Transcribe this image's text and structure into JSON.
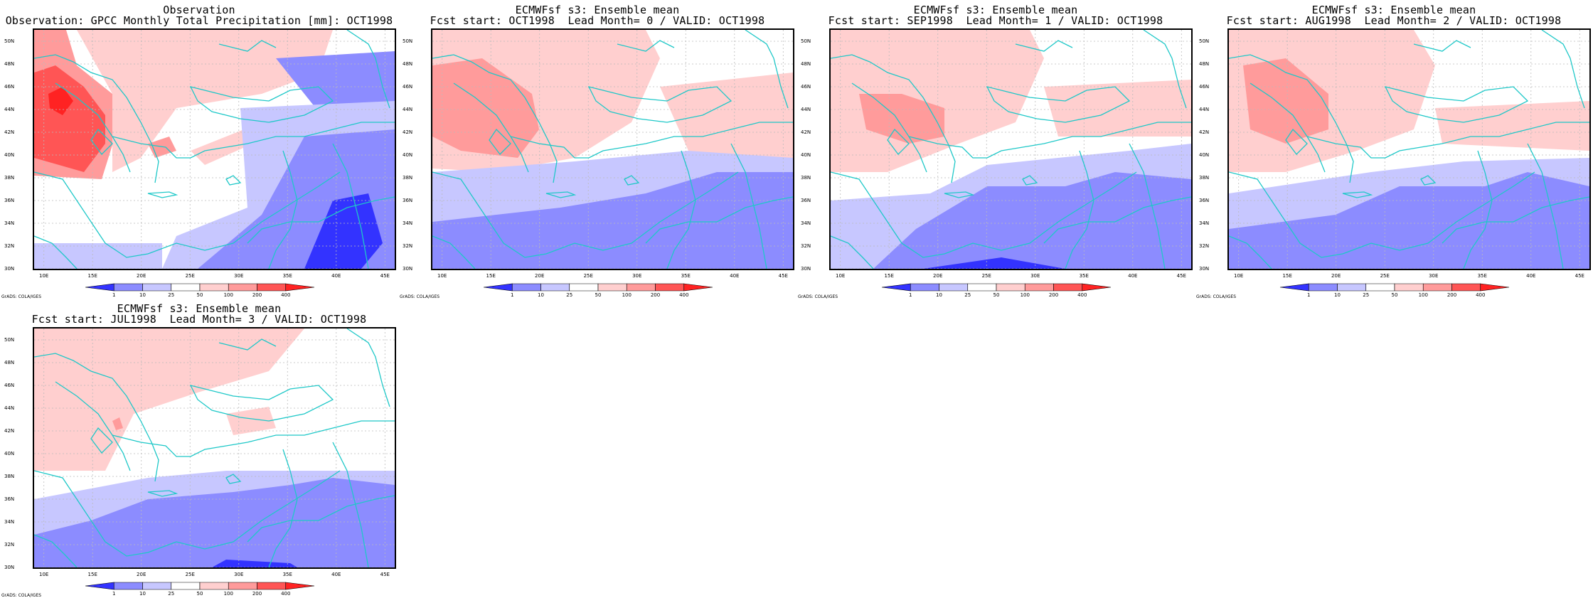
{
  "panels": [
    {
      "title1": "Observation",
      "title2": "Observation: GPCC Monthly Total Precipitation [mm]: OCT1998"
    },
    {
      "title1": "ECMWFsf s3: Ensemble mean",
      "title2": "Fcst start: OCT1998  Lead Month= 0 / VALID: OCT1998"
    },
    {
      "title1": "ECMWFsf s3: Ensemble mean",
      "title2": "Fcst start: SEP1998  Lead Month= 1 / VALID: OCT1998"
    },
    {
      "title1": "ECMWFsf s3: Ensemble mean",
      "title2": "Fcst start: AUG1998  Lead Month= 2 / VALID: OCT1998"
    },
    {
      "title1": "ECMWFsf s3: Ensemble mean",
      "title2": "Fcst start: JUL1998  Lead Month= 3 / VALID: OCT1998"
    }
  ],
  "axes": {
    "lat_labels": [
      "50N",
      "48N",
      "46N",
      "44N",
      "42N",
      "40N",
      "38N",
      "36N",
      "34N",
      "32N",
      "30N"
    ],
    "lon_labels": [
      "10E",
      "15E",
      "20E",
      "25E",
      "30E",
      "35E",
      "40E",
      "45E"
    ]
  },
  "colorbar": {
    "labels": [
      "1",
      "10",
      "25",
      "50",
      "100",
      "200",
      "400"
    ],
    "colors": [
      "#3333ff",
      "#8c8cff",
      "#c7c7ff",
      "#ffffff",
      "#ffcfcf",
      "#ff9b9b",
      "#ff5555",
      "#ff2222"
    ]
  },
  "credit": "GrADS: COLA/IGES",
  "styles": {
    "coast_color": "#1fc8c8",
    "grid_color": "#bbbbbb"
  }
}
